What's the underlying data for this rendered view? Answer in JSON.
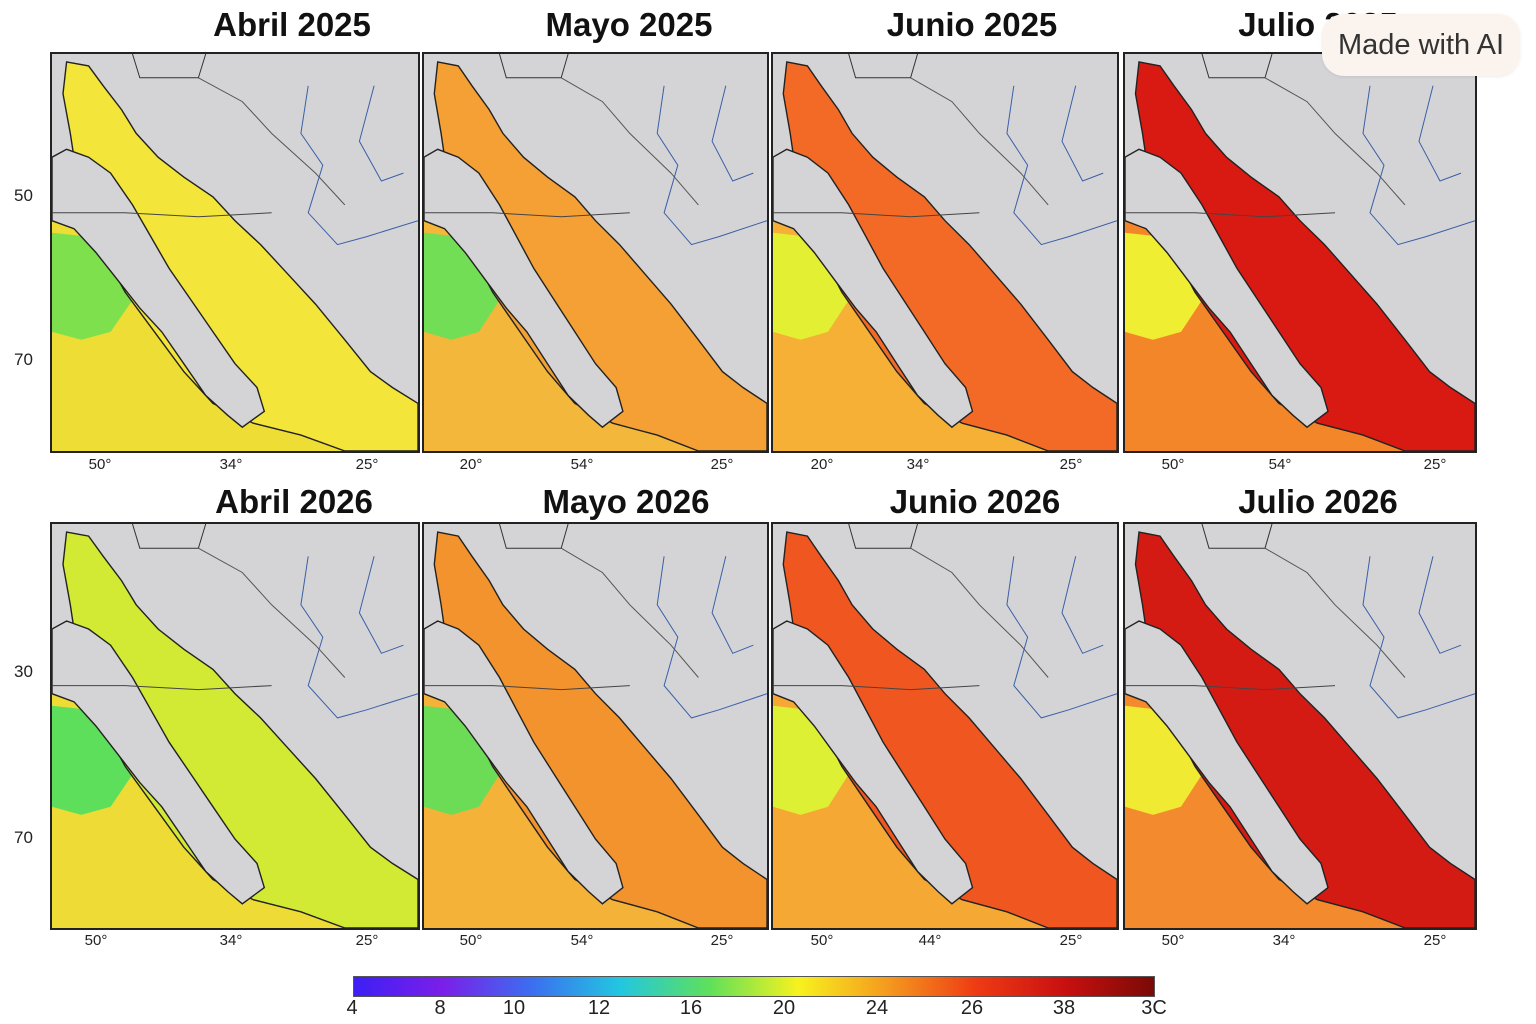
{
  "titles": {
    "r1c1": "Abril 2025",
    "r1c2": "Mayo 2025",
    "r1c3": "Junio 2025",
    "r1c4": "Julio 2025",
    "r2c1": "Abril 2026",
    "r2c2": "Mayo 2026",
    "r2c3": "Junio 2026",
    "r2c4": "Julio 2026"
  },
  "y_ticks": {
    "row1": [
      "50",
      "70"
    ],
    "row2": [
      "30",
      "70"
    ]
  },
  "x_ticks": {
    "r1c1": [
      "50°",
      "34°",
      "25°"
    ],
    "r1c2": [
      "20°",
      "54°",
      "25°"
    ],
    "r1c3": [
      "20°",
      "34°",
      "25°"
    ],
    "r1c4": [
      "50°",
      "54°",
      "25°"
    ],
    "r2c1": [
      "50°",
      "34°",
      "25°"
    ],
    "r2c2": [
      "50°",
      "54°",
      "25°"
    ],
    "r2c3": [
      "50°",
      "44°",
      "25°"
    ],
    "r2c4": [
      "50°",
      "34°",
      "25°"
    ]
  },
  "colorbar": {
    "tick_labels": [
      "4",
      "8",
      "10",
      "12",
      "16",
      "20",
      "24",
      "26",
      "38",
      "3C"
    ],
    "colors": [
      "#3d1ff5",
      "#7b1fe8",
      "#3b6ef0",
      "#22c7e0",
      "#5fe05a",
      "#f7f21e",
      "#f59a1e",
      "#ee3b14",
      "#c81010",
      "#7a0a06"
    ]
  },
  "panel_colors": {
    "r1c1": {
      "gulf": "#f3e53a",
      "ocean": "#eedd34",
      "cool": "#7fe04e"
    },
    "r1c2": {
      "gulf": "#f5a034",
      "ocean": "#f2b73b",
      "cool": "#71de55"
    },
    "r1c3": {
      "gulf": "#f36a26",
      "ocean": "#f5b035",
      "cool": "#e2ef33"
    },
    "r1c4": {
      "gulf": "#d91a12",
      "ocean": "#f4862a",
      "cool": "#f0ee33"
    },
    "r2c1": {
      "gulf": "#d2ea33",
      "ocean": "#eedb36",
      "cool": "#5ddf5c"
    },
    "r2c2": {
      "gulf": "#f3932d",
      "ocean": "#f5b238",
      "cool": "#6cdb56"
    },
    "r2c3": {
      "gulf": "#f0561f",
      "ocean": "#f5a834",
      "cool": "#def034"
    },
    "r2c4": {
      "gulf": "#d41b13",
      "ocean": "#f38a2d",
      "cool": "#f0ea33"
    }
  },
  "badge_text": "Made with AI"
}
